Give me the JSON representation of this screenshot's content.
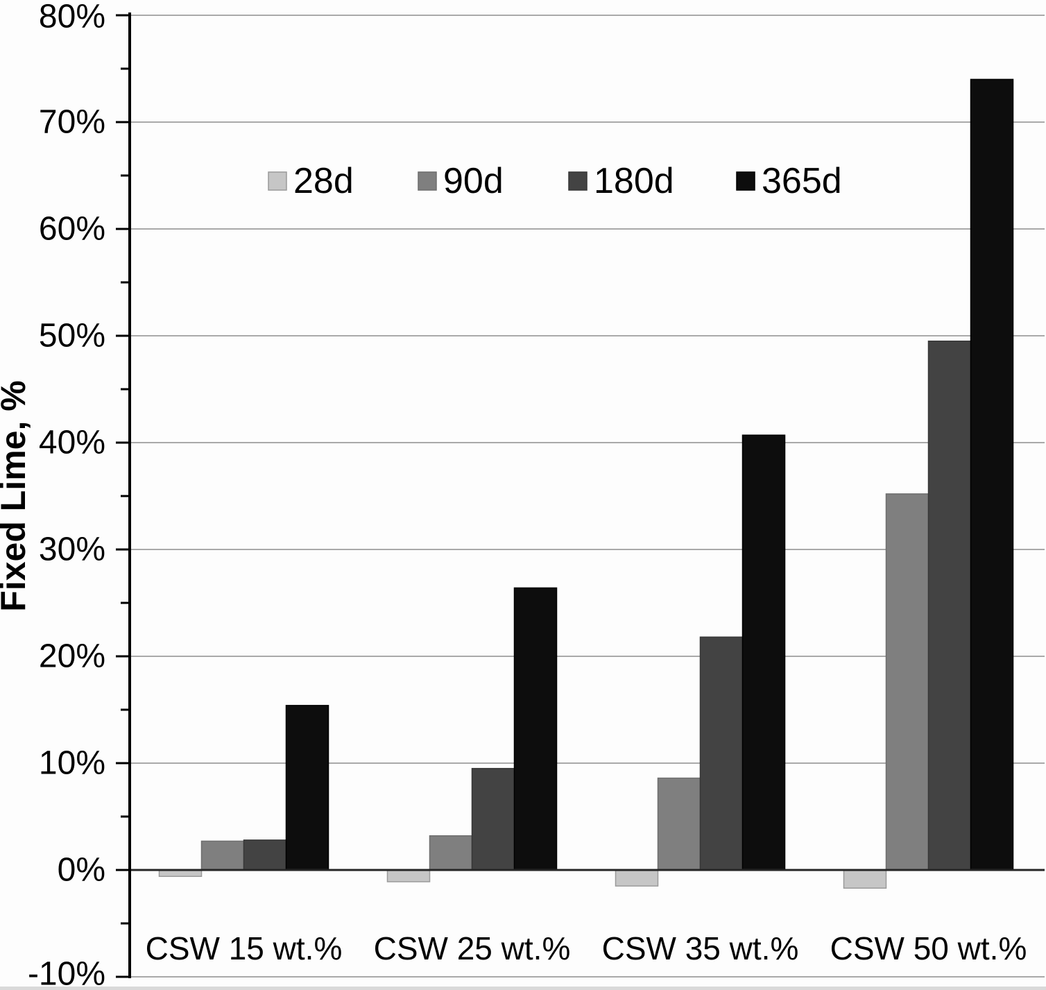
{
  "chart_data": {
    "type": "bar",
    "title": "",
    "xlabel": "",
    "ylabel": "Fixed Lime, %",
    "categories": [
      "CSW 15 wt.%",
      "CSW 25 wt.%",
      "CSW 35 wt.%",
      "CSW 50 wt.%"
    ],
    "series": [
      {
        "name": "28d",
        "color": "#c6c6c6",
        "border": "#9a9a9a",
        "values": [
          -0.6,
          -1.1,
          -1.5,
          -1.7
        ]
      },
      {
        "name": "90d",
        "color": "#7f7f7f",
        "border": "#6e6e6e",
        "values": [
          2.7,
          3.2,
          8.6,
          35.2
        ]
      },
      {
        "name": "180d",
        "color": "#434343",
        "border": "#373737",
        "values": [
          2.8,
          9.5,
          21.8,
          49.5
        ]
      },
      {
        "name": "365d",
        "color": "#0d0d0d",
        "border": "#000000",
        "values": [
          15.4,
          26.4,
          40.7,
          74.0
        ]
      }
    ],
    "ylim": [
      -10,
      80
    ],
    "y_major_step": 10,
    "y_minor_step": 5,
    "y_tick_labels": [
      "80%",
      "70%",
      "60%",
      "50%",
      "40%",
      "30%",
      "20%",
      "10%",
      "0%",
      "-10%"
    ],
    "grid": true,
    "legend_position": "top-inside",
    "background_color": "#fdfdfd",
    "grid_color": "#a9a9a9",
    "zero_line_color": "#262626",
    "axis_color": "#000000",
    "bottom_edge_color": "#d9d9d9"
  }
}
